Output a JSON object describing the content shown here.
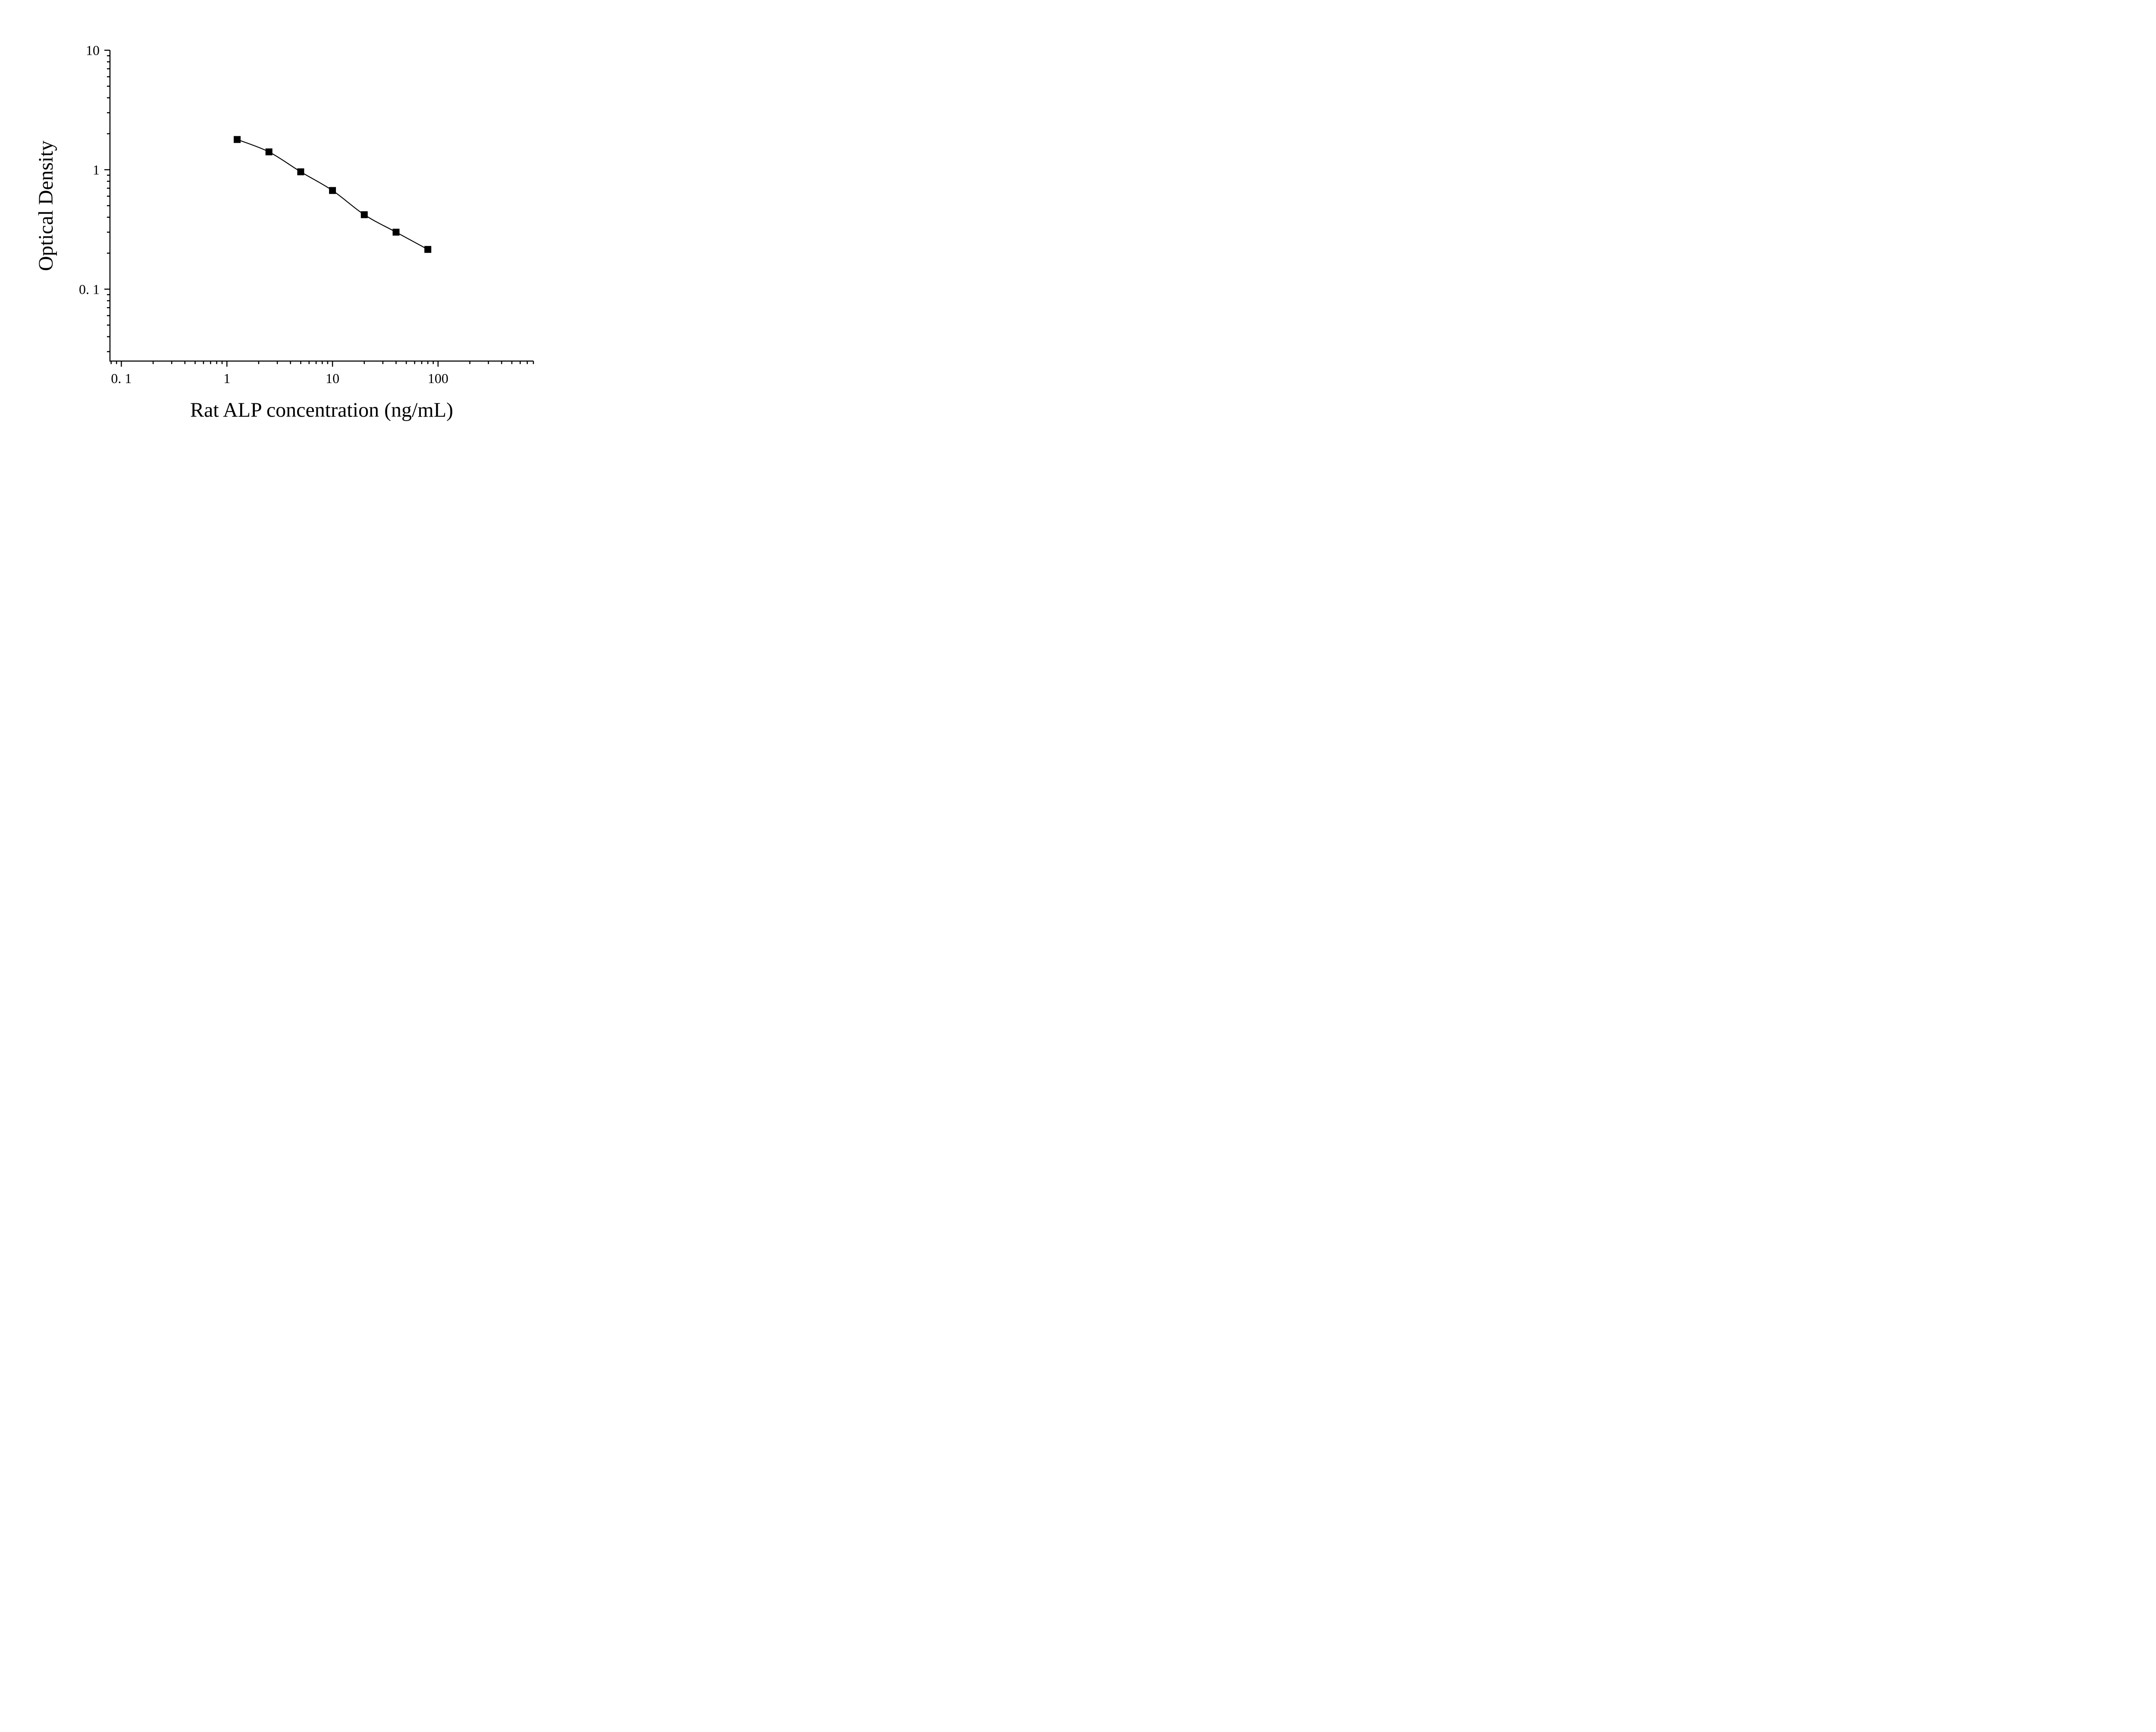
{
  "figure": {
    "background": "#ffffff"
  },
  "chart_data": {
    "type": "scatter",
    "title": "",
    "xlabel": "Rat ALP concentration (ng/mL)",
    "ylabel": "Optical Density",
    "xscale": "log",
    "yscale": "log",
    "xlim": [
      0.078,
      800
    ],
    "ylim": [
      0.025,
      10
    ],
    "x": [
      1.25,
      2.5,
      5,
      10,
      20,
      40,
      80
    ],
    "y": [
      1.79,
      1.41,
      0.96,
      0.67,
      0.42,
      0.3,
      0.215
    ],
    "x_major_ticks": [
      0.1,
      1,
      10,
      100
    ],
    "x_tick_labels": [
      "0. 1",
      "1",
      "10",
      "100"
    ],
    "y_major_ticks": [
      0.1,
      1,
      10
    ],
    "y_tick_labels": [
      "0. 1",
      "1",
      "10"
    ],
    "marker": "filled-square",
    "line_between_points": true,
    "grid": false,
    "legend": null,
    "colors": {
      "axis": "#000000",
      "line": "#000000",
      "marker": "#000000",
      "text": "#000000",
      "background": "#ffffff"
    }
  }
}
